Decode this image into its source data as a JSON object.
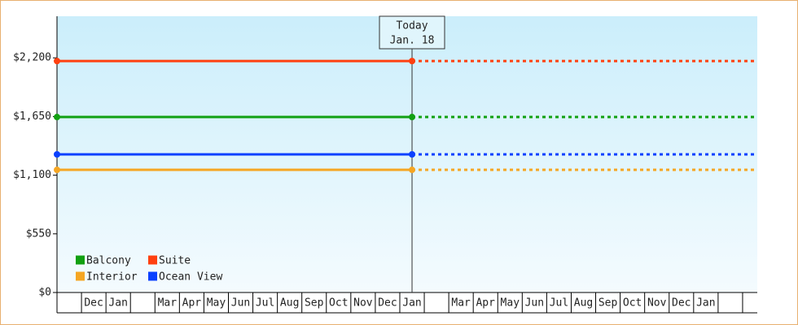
{
  "chart_data": {
    "type": "line",
    "categories": [
      null,
      "Dec",
      "Jan",
      null,
      "Mar",
      "Apr",
      "May",
      "Jun",
      "Jul",
      "Aug",
      "Sep",
      "Oct",
      "Nov",
      "Dec",
      "Jan",
      null,
      "Mar",
      "Apr",
      "May",
      "Jun",
      "Jul",
      "Aug",
      "Sep",
      "Oct",
      "Nov",
      "Dec",
      "Jan",
      null,
      null
    ],
    "series": [
      {
        "name": "Balcony",
        "color": "#11a011",
        "value": 1645
      },
      {
        "name": "Suite",
        "color": "#ff4010",
        "value": 2170
      },
      {
        "name": "Interior",
        "color": "#f5a623",
        "value": 1150
      },
      {
        "name": "Ocean View",
        "color": "#0a40ff",
        "value": 1295
      }
    ],
    "annotation": {
      "text": "Today",
      "date": "Jan. 18"
    },
    "ylim": [
      0,
      2590
    ],
    "yticks": [
      {
        "value": 0,
        "label": "$0"
      },
      {
        "value": 550,
        "label": "$550"
      },
      {
        "value": 1100,
        "label": "$1,100"
      },
      {
        "value": 1650,
        "label": "$1,650"
      },
      {
        "value": 2200,
        "label": "$2,200"
      }
    ]
  }
}
